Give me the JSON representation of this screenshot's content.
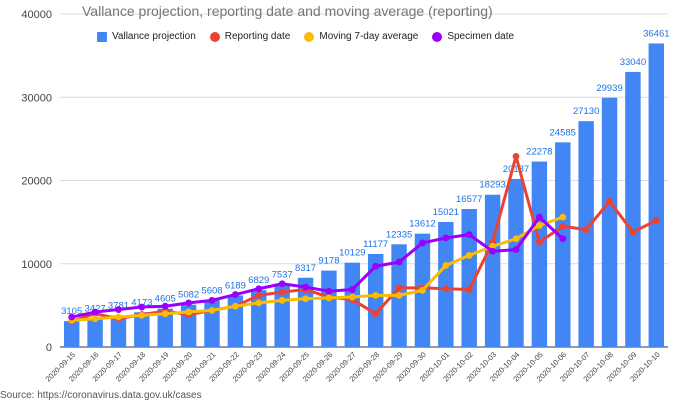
{
  "chart_data": {
    "type": "bar",
    "title": "Vallance projection, reporting date and moving average (reporting)",
    "source": "Source: https://coronavirus.data.gov.uk/cases",
    "categories": [
      "2020-09-15",
      "2020-09-16",
      "2020-09-17",
      "2020-09-18",
      "2020-09-19",
      "2020-09-20",
      "2020-09-21",
      "2020-09-22",
      "2020-09-23",
      "2020-09-24",
      "2020-09-25",
      "2020-09-26",
      "2020-09-27",
      "2020-09-28",
      "2020-09-29",
      "2020-09-30",
      "2020-10-01",
      "2020-10-02",
      "2020-10-03",
      "2020-10-04",
      "2020-10-05",
      "2020-10-06",
      "2020-10-07",
      "2020-10-08",
      "2020-10-09",
      "2020-10-10"
    ],
    "ylim": [
      0,
      40000
    ],
    "yticks": [
      0,
      10000,
      20000,
      30000,
      40000
    ],
    "grid": true,
    "legend_position": "top",
    "series": [
      {
        "name": "Vallance projection",
        "kind": "bar",
        "color": "#4285f4",
        "values": [
          3105,
          3427,
          3781,
          4173,
          4605,
          5082,
          5608,
          6189,
          6829,
          7537,
          8317,
          9178,
          10129,
          11177,
          12335,
          13612,
          15021,
          16577,
          18293,
          20187,
          22278,
          24585,
          27130,
          29939,
          33040,
          36461
        ]
      },
      {
        "name": "Reporting date",
        "kind": "line",
        "color": "#ea4335",
        "values": [
          3100,
          4000,
          3400,
          3900,
          4300,
          3900,
          4400,
          4900,
          6200,
          6600,
          6900,
          6000,
          5700,
          4000,
          7100,
          7100,
          7000,
          6900,
          12600,
          22900,
          12600,
          14500,
          14100,
          17500,
          13800,
          15200
        ]
      },
      {
        "name": "Moving 7-day average",
        "kind": "line",
        "color": "#fbbc04",
        "values": [
          3200,
          3400,
          3600,
          3800,
          4000,
          4200,
          4400,
          4900,
          5300,
          5600,
          5800,
          5900,
          6000,
          6200,
          6200,
          6800,
          9800,
          11000,
          12100,
          13000,
          14600,
          15600,
          null,
          null,
          null,
          null
        ]
      },
      {
        "name": "Specimen date",
        "kind": "line",
        "color": "#9900ff",
        "values": [
          3600,
          4200,
          4500,
          4800,
          4900,
          5300,
          5600,
          6300,
          7000,
          7600,
          7200,
          6700,
          6900,
          9700,
          10200,
          12500,
          13100,
          13500,
          11500,
          11700,
          15600,
          13000,
          null,
          null,
          null,
          null
        ]
      }
    ]
  }
}
